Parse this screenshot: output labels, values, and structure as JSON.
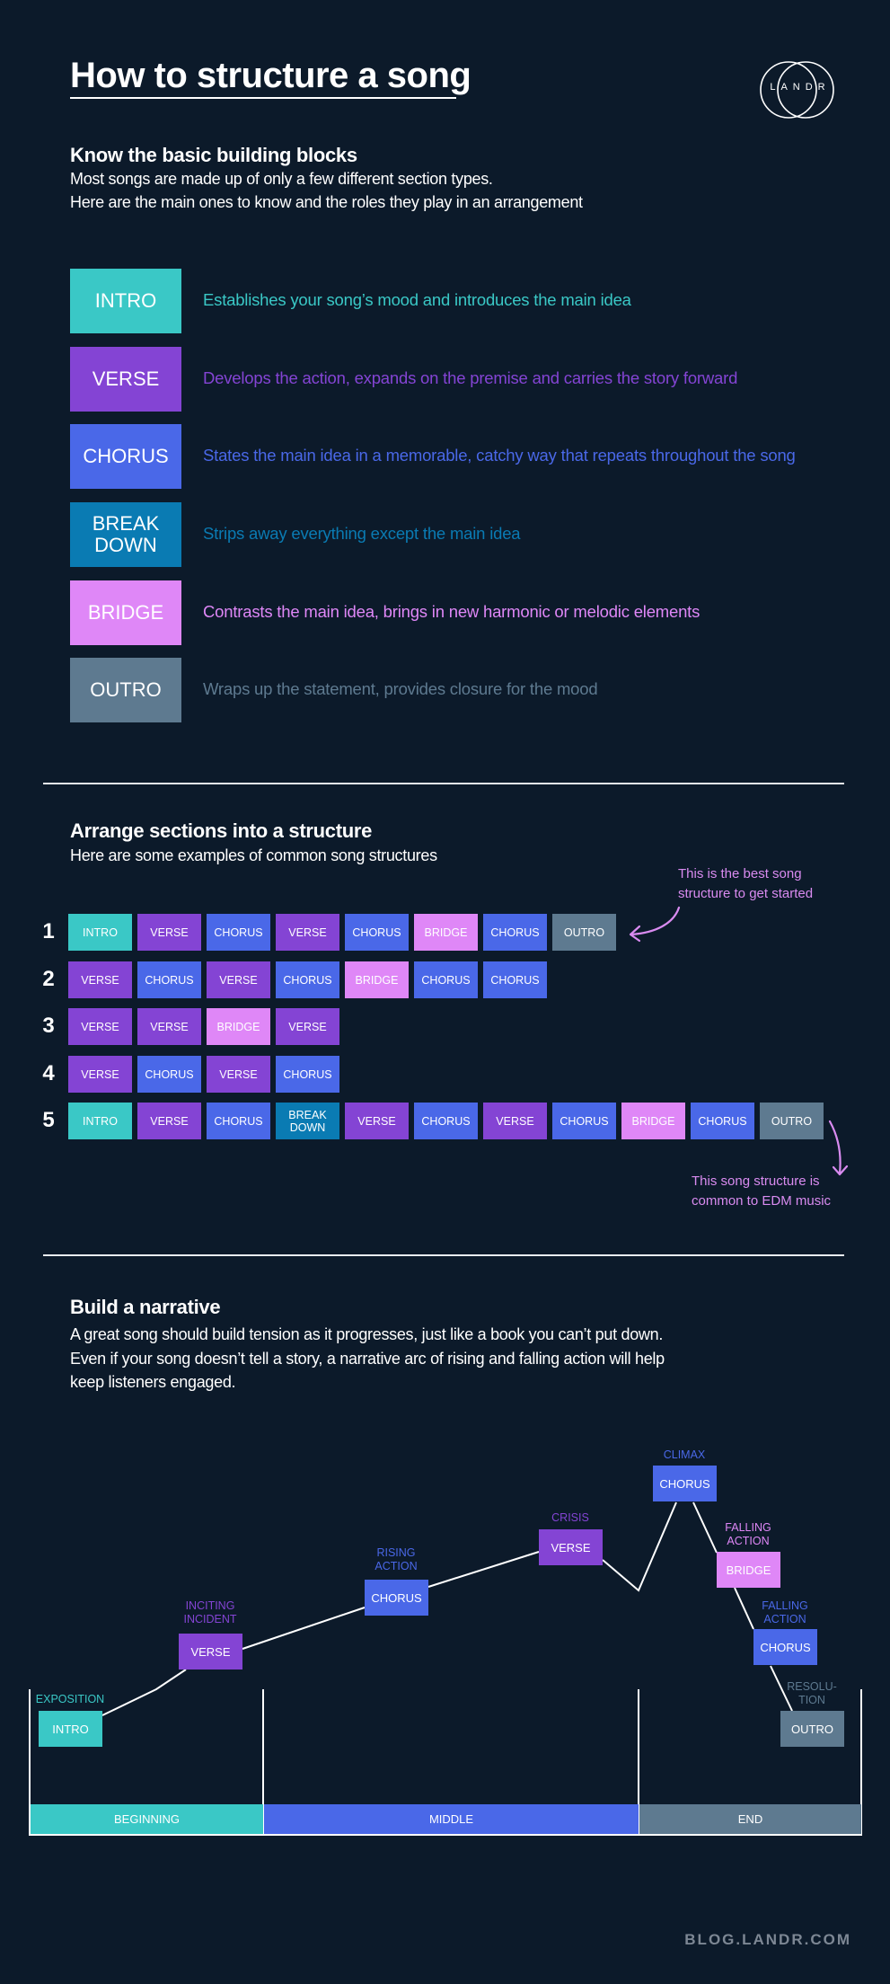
{
  "header": {
    "title": "How to structure a song",
    "logo_text": "LANDR"
  },
  "colors": {
    "background": "#0c1a2a",
    "intro": "#3ac8c6",
    "verse": "#8444d4",
    "chorus": "#4a68e8",
    "breakdown": "#0a7bb3",
    "bridge": "#df87f7",
    "outro": "#5e7a90",
    "annotation": "#d98bf0"
  },
  "blocks": {
    "heading": "Know the basic building blocks",
    "intro_lines": [
      "Most songs are made up of only a few different section types.",
      "Here are the main ones to know and the roles they play in an arrangement"
    ],
    "items": [
      {
        "type": "intro",
        "label": "INTRO",
        "description": "Establishes your song’s mood and introduces the main idea"
      },
      {
        "type": "verse",
        "label": "VERSE",
        "description": "Develops the action, expands on the premise and carries the story forward"
      },
      {
        "type": "chorus",
        "label": "CHORUS",
        "description": "States the main idea in a memorable, catchy way that repeats throughout the song"
      },
      {
        "type": "breakdown",
        "label": "BREAK DOWN",
        "description": "Strips away everything except the main idea"
      },
      {
        "type": "bridge",
        "label": "BRIDGE",
        "description": "Contrasts the main idea, brings in new harmonic or melodic elements"
      },
      {
        "type": "outro",
        "label": "OUTRO",
        "description": "Wraps up the statement, provides closure for the mood"
      }
    ]
  },
  "structures": {
    "heading": "Arrange sections into a structure",
    "subtitle": "Here are some examples of common song structures",
    "labels": {
      "intro": "INTRO",
      "verse": "VERSE",
      "chorus": "CHORUS",
      "breakdown": "BREAK DOWN",
      "bridge": "BRIDGE",
      "outro": "OUTRO"
    },
    "rows": [
      {
        "number": "1",
        "sections": [
          "intro",
          "verse",
          "chorus",
          "verse",
          "chorus",
          "bridge",
          "chorus",
          "outro"
        ]
      },
      {
        "number": "2",
        "sections": [
          "verse",
          "chorus",
          "verse",
          "chorus",
          "bridge",
          "chorus",
          "chorus"
        ]
      },
      {
        "number": "3",
        "sections": [
          "verse",
          "verse",
          "bridge",
          "verse"
        ]
      },
      {
        "number": "4",
        "sections": [
          "verse",
          "chorus",
          "verse",
          "chorus"
        ]
      },
      {
        "number": "5",
        "sections": [
          "intro",
          "verse",
          "chorus",
          "breakdown",
          "verse",
          "chorus",
          "verse",
          "chorus",
          "bridge",
          "chorus",
          "outro"
        ]
      }
    ],
    "note_best": [
      "This is the best song",
      "structure to get started"
    ],
    "note_edm": [
      "This song structure is",
      "common to EDM music"
    ]
  },
  "narrative": {
    "heading": "Build a narrative",
    "lines": [
      "A great song should build tension as it progresses, just like a book you can’t put down.",
      "Even if your song doesn’t tell a story, a narrative arc of rising and falling action will help",
      "keep listeners engaged."
    ],
    "points": [
      {
        "stage": [
          "EXPOSITION"
        ],
        "type": "intro",
        "label": "INTRO"
      },
      {
        "stage": [
          "INCITING",
          "INCIDENT"
        ],
        "type": "verse",
        "label": "VERSE"
      },
      {
        "stage": [
          "RISING",
          "ACTION"
        ],
        "type": "chorus",
        "label": "CHORUS"
      },
      {
        "stage": [
          "CRISIS"
        ],
        "type": "verse",
        "label": "VERSE"
      },
      {
        "stage": [
          "CLIMAX"
        ],
        "type": "chorus",
        "label": "CHORUS"
      },
      {
        "stage": [
          "FALLING",
          "ACTION"
        ],
        "type": "bridge",
        "label": "BRIDGE"
      },
      {
        "stage": [
          "FALLING",
          "ACTION"
        ],
        "type": "chorus",
        "label": "CHORUS"
      },
      {
        "stage": [
          "RESOLU-",
          "TION"
        ],
        "type": "outro",
        "label": "OUTRO"
      }
    ],
    "acts": [
      {
        "label": "BEGINNING",
        "type": "intro"
      },
      {
        "label": "MIDDLE",
        "type": "chorus"
      },
      {
        "label": "END",
        "type": "outro"
      }
    ]
  },
  "footer": {
    "url": "BLOG.LANDR.COM"
  }
}
